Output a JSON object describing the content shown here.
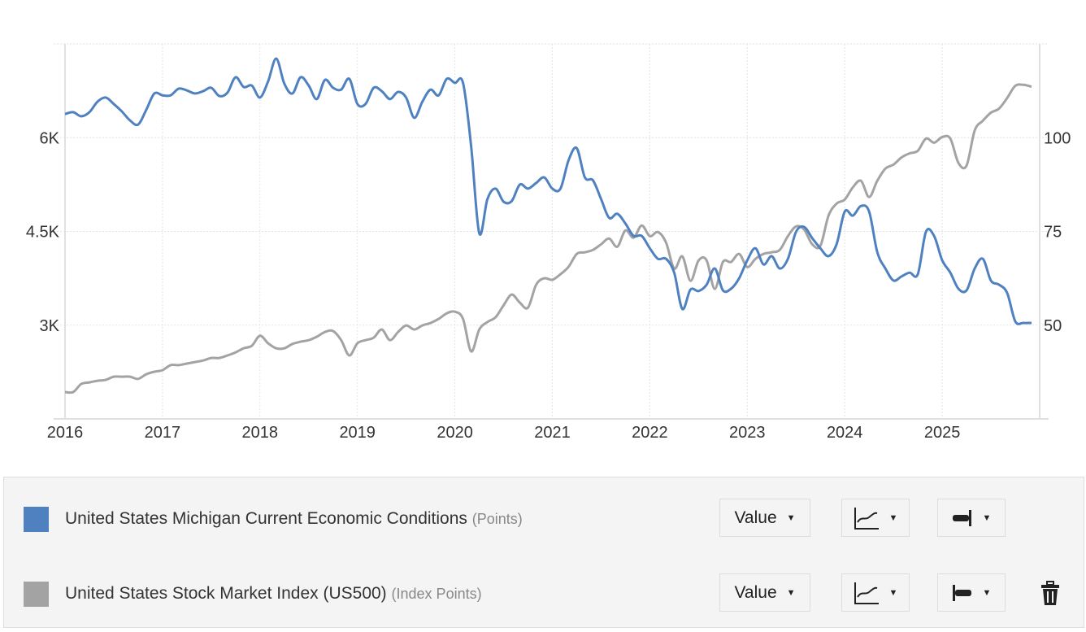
{
  "chart_data": {
    "type": "line",
    "title": "",
    "x_start": 2016,
    "x_ticks": [
      "2016",
      "2017",
      "2018",
      "2019",
      "2020",
      "2021",
      "2022",
      "2023",
      "2024",
      "2025"
    ],
    "x_range": [
      2016,
      2026
    ],
    "left_axis": {
      "ticks": [
        3000,
        4500,
        6000
      ],
      "tick_labels": [
        "3K",
        "4.5K",
        "6K"
      ],
      "range": [
        1500,
        7500
      ],
      "series": "United States Stock Market Index (US500)"
    },
    "right_axis": {
      "ticks": [
        50,
        75,
        100
      ],
      "tick_labels": [
        "50",
        "75",
        "100"
      ],
      "range": [
        25,
        125
      ],
      "series": "United States Michigan Current Economic Conditions"
    },
    "grid": true,
    "frequency": "monthly, Jan 2016 - Dec 2025",
    "series": [
      {
        "name": "United States Michigan Current Economic Conditions",
        "axis": "right",
        "color": "#4f81c1",
        "values": [
          106.3,
          106.8,
          105.7,
          106.8,
          109.6,
          110.7,
          109,
          107,
          104.6,
          103.5,
          107.4,
          111.8,
          111.3,
          111.3,
          113.1,
          112.6,
          111.8,
          112.4,
          113.3,
          111.1,
          112,
          116.1,
          113.5,
          113.9,
          110.7,
          115,
          121.1,
          114.4,
          111.8,
          116.1,
          113.9,
          110.3,
          115.4,
          113.3,
          112.8,
          115.7,
          109,
          109,
          113.3,
          112.4,
          110.3,
          112.2,
          110.7,
          105.3,
          109.6,
          112.8,
          111.3,
          115.7,
          114.6,
          114.6,
          97.7,
          74.5,
          83.6,
          86.4,
          82.9,
          83.1,
          87.5,
          86.4,
          87.9,
          89.4,
          86.4,
          86.4,
          94,
          97.2,
          89.4,
          88.6,
          83.6,
          78.6,
          79.7,
          77.1,
          73.8,
          73.8,
          70.5,
          67.7,
          67.7,
          64,
          54.3,
          59.5,
          59.1,
          60.8,
          65.1,
          59.3,
          59.7,
          62.5,
          67.3,
          70.5,
          66.2,
          68.4,
          65.1,
          67.7,
          74.9,
          76.2,
          73.2,
          70.5,
          68.4,
          71.6,
          80.3,
          79.2,
          81.8,
          80.3,
          69.5,
          65.1,
          61.9,
          63,
          64,
          63.6,
          74.9,
          73.8,
          67.3,
          64,
          59.7,
          59.3,
          65.1,
          67.7,
          61.9,
          60.8,
          58.6,
          51,
          50.6,
          50.6
        ]
      },
      {
        "name": "United States Stock Market Index (US500)",
        "axis": "left",
        "color": "#a3a3a3",
        "values": [
          1930,
          1930,
          2060,
          2085,
          2110,
          2125,
          2175,
          2175,
          2175,
          2140,
          2215,
          2255,
          2280,
          2360,
          2360,
          2385,
          2410,
          2435,
          2475,
          2475,
          2515,
          2565,
          2630,
          2670,
          2830,
          2710,
          2630,
          2630,
          2700,
          2735,
          2760,
          2815,
          2890,
          2905,
          2760,
          2515,
          2710,
          2760,
          2800,
          2930,
          2760,
          2890,
          2995,
          2930,
          2995,
          3035,
          3100,
          3190,
          3215,
          3100,
          2580,
          2930,
          3050,
          3125,
          3320,
          3490,
          3360,
          3280,
          3645,
          3750,
          3725,
          3815,
          3935,
          4140,
          4165,
          4205,
          4295,
          4385,
          4255,
          4515,
          4400,
          4595,
          4425,
          4490,
          4320,
          3905,
          4100,
          3710,
          4035,
          4035,
          3580,
          4010,
          4010,
          4140,
          3930,
          4060,
          4140,
          4165,
          4205,
          4425,
          4580,
          4530,
          4295,
          4270,
          4750,
          4945,
          5010,
          5205,
          5310,
          5050,
          5310,
          5505,
          5570,
          5685,
          5750,
          5790,
          5985,
          5920,
          6010,
          5985,
          5595,
          5555,
          6115,
          6270,
          6400,
          6465,
          6635,
          6830,
          6845,
          6815
        ]
      }
    ]
  },
  "legend": {
    "rows": [
      {
        "name": "United States Michigan Current Economic Conditions",
        "unit": "(Points)",
        "color": "#4f81c1",
        "value_label": "Value",
        "chart_icon": "line-chart-icon",
        "axis_icon": "axis-right-icon"
      },
      {
        "name": "United States Stock Market Index (US500)",
        "unit": "(Index Points)",
        "color": "#a3a3a3",
        "value_label": "Value",
        "chart_icon": "line-chart-icon",
        "axis_icon": "axis-left-icon",
        "delete_icon": "trash-icon"
      }
    ]
  }
}
